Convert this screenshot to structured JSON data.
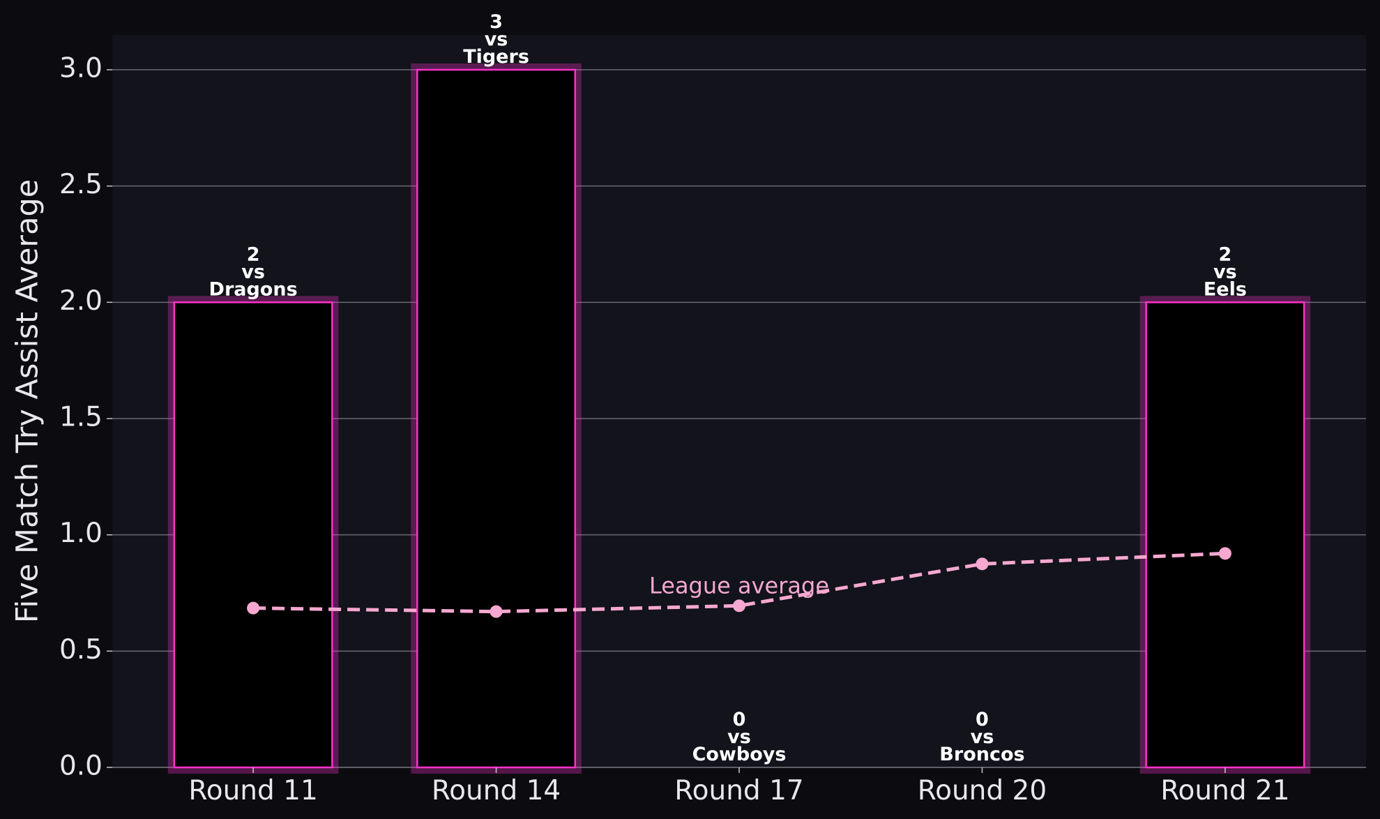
{
  "chart_data": {
    "type": "bar",
    "y_label": "Five Match Try Assist Average",
    "categories": [
      "Round 11",
      "Round 14",
      "Round 17",
      "Round 20",
      "Round 21"
    ],
    "values": [
      2,
      3,
      0,
      0,
      2
    ],
    "value_labels": [
      "2\nvs\nDragons",
      "3\nvs\nTigers",
      "0\nvs\nCowboys",
      "0\nvs\nBroncos",
      "2\nvs\nEels"
    ],
    "color": "#ff33cc",
    "line": {
      "name": "League average",
      "color": "#f7a8d0",
      "values": [
        0.685,
        0.67,
        0.695,
        0.875,
        0.92
      ]
    },
    "ylim": [
      0,
      3.15
    ],
    "yticks": [
      {
        "value": 0,
        "label": "0.0"
      },
      {
        "value": 0.5,
        "label": "0.5"
      },
      {
        "value": 1,
        "label": "1.0"
      },
      {
        "value": 1.5,
        "label": "1.5"
      },
      {
        "value": 2,
        "label": "2.0"
      },
      {
        "value": 2.5,
        "label": "2.5"
      },
      {
        "value": 3,
        "label": "3.0"
      }
    ],
    "grid": true
  }
}
